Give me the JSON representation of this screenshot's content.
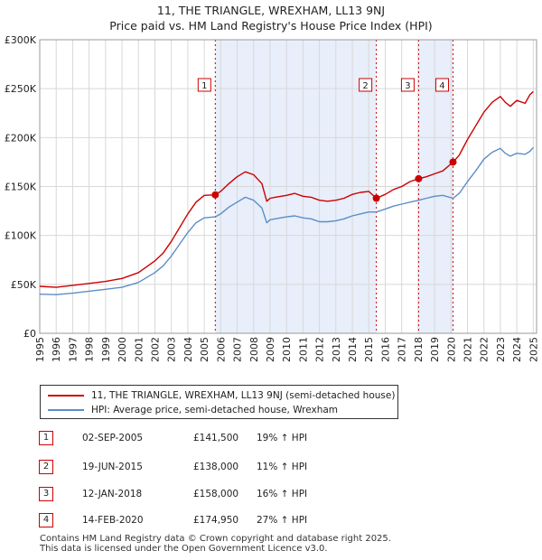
{
  "header": {
    "title": "11, THE TRIANGLE, WREXHAM, LL13 9NJ",
    "subtitle": "Price paid vs. HM Land Registry's House Price Index (HPI)"
  },
  "chart_data": {
    "type": "line",
    "title": "11, THE TRIANGLE, WREXHAM, LL13 9NJ",
    "subtitle": "Price paid vs. HM Land Registry's House Price Index (HPI)",
    "xlabel": "",
    "ylabel": "",
    "xlim": [
      1995,
      2025.2
    ],
    "ylim": [
      0,
      300000
    ],
    "yticks": [
      0,
      50000,
      100000,
      150000,
      200000,
      250000,
      300000
    ],
    "ytick_labels": [
      "£0",
      "£50K",
      "£100K",
      "£150K",
      "£200K",
      "£250K",
      "£300K"
    ],
    "xticks": [
      1995,
      1996,
      1997,
      1998,
      1999,
      2000,
      2001,
      2002,
      2003,
      2004,
      2005,
      2006,
      2007,
      2008,
      2009,
      2010,
      2011,
      2012,
      2013,
      2014,
      2015,
      2016,
      2017,
      2018,
      2019,
      2020,
      2021,
      2022,
      2023,
      2024,
      2025
    ],
    "grid": true,
    "shaded_periods": [
      [
        2005.67,
        2015.46
      ],
      [
        2018.03,
        2020.12
      ]
    ],
    "series": [
      {
        "name": "11, THE TRIANGLE, WREXHAM, LL13 9NJ (semi-detached house)",
        "color": "#cc0000",
        "x": [
          1995.0,
          1996.0,
          1997.0,
          1998.0,
          1999.0,
          2000.0,
          2001.0,
          2002.0,
          2002.5,
          2003.0,
          2003.5,
          2004.0,
          2004.5,
          2005.0,
          2005.67,
          2006.0,
          2006.5,
          2007.0,
          2007.5,
          2008.0,
          2008.5,
          2008.8,
          2009.0,
          2009.3,
          2010.0,
          2010.5,
          2011.0,
          2011.5,
          2012.0,
          2012.5,
          2013.0,
          2013.5,
          2014.0,
          2014.5,
          2015.0,
          2015.46,
          2016.0,
          2016.5,
          2017.0,
          2017.5,
          2018.03,
          2018.5,
          2019.0,
          2019.5,
          2020.12,
          2020.5,
          2021.0,
          2021.5,
          2022.0,
          2022.5,
          2023.0,
          2023.3,
          2023.6,
          2024.0,
          2024.5,
          2024.8,
          2025.0
        ],
        "values": [
          48000,
          47000,
          49000,
          51000,
          53000,
          56000,
          62000,
          74000,
          82000,
          94000,
          108000,
          122000,
          134000,
          141000,
          141500,
          145000,
          153000,
          160000,
          165000,
          162000,
          153000,
          135000,
          138000,
          139000,
          141000,
          143000,
          140000,
          139000,
          136000,
          135000,
          136000,
          138000,
          142000,
          144000,
          145000,
          138000,
          142000,
          147000,
          150000,
          155000,
          158000,
          160000,
          163000,
          166000,
          174950,
          182000,
          198000,
          212000,
          226000,
          236000,
          242000,
          236000,
          232000,
          238000,
          235000,
          244000,
          247000
        ]
      },
      {
        "name": "HPI: Average price, semi-detached house, Wrexham",
        "color": "#5b8ec5",
        "x": [
          1995.0,
          1996.0,
          1997.0,
          1998.0,
          1999.0,
          2000.0,
          2001.0,
          2002.0,
          2002.5,
          2003.0,
          2003.5,
          2004.0,
          2004.5,
          2005.0,
          2005.67,
          2006.0,
          2006.5,
          2007.0,
          2007.5,
          2008.0,
          2008.5,
          2008.8,
          2009.0,
          2009.3,
          2010.0,
          2010.5,
          2011.0,
          2011.5,
          2012.0,
          2012.5,
          2013.0,
          2013.5,
          2014.0,
          2014.5,
          2015.0,
          2015.46,
          2016.0,
          2016.5,
          2017.0,
          2017.5,
          2018.03,
          2018.5,
          2019.0,
          2019.5,
          2020.12,
          2020.5,
          2021.0,
          2021.5,
          2022.0,
          2022.5,
          2023.0,
          2023.3,
          2023.6,
          2024.0,
          2024.5,
          2024.8,
          2025.0
        ],
        "values": [
          40000,
          39500,
          41000,
          43000,
          45000,
          47000,
          52000,
          62000,
          69000,
          79000,
          91000,
          103000,
          113000,
          118000,
          119000,
          122000,
          129000,
          134000,
          139000,
          136000,
          128000,
          113000,
          116000,
          117000,
          119000,
          120000,
          118000,
          117000,
          114000,
          114000,
          115000,
          117000,
          120000,
          122000,
          124000,
          124000,
          127000,
          130000,
          132000,
          134000,
          136000,
          138000,
          140000,
          141000,
          138000,
          143000,
          155000,
          166000,
          178000,
          185000,
          189000,
          184000,
          181000,
          184000,
          183000,
          186000,
          190000
        ]
      }
    ],
    "sales": [
      {
        "label": "1",
        "x": 2005.67,
        "value": 141500
      },
      {
        "label": "2",
        "x": 2015.46,
        "value": 138000
      },
      {
        "label": "3",
        "x": 2018.03,
        "value": 158000
      },
      {
        "label": "4",
        "x": 2020.12,
        "value": 174950
      }
    ]
  },
  "legend": {
    "items": [
      {
        "label": "11, THE TRIANGLE, WREXHAM, LL13 9NJ (semi-detached house)",
        "color": "#cc0000"
      },
      {
        "label": "HPI: Average price, semi-detached house, Wrexham",
        "color": "#5b8ec5"
      }
    ]
  },
  "transactions": [
    {
      "num": "1",
      "date": "02-SEP-2005",
      "price": "£141,500",
      "hpi": "19% ↑ HPI"
    },
    {
      "num": "2",
      "date": "19-JUN-2015",
      "price": "£138,000",
      "hpi": "11% ↑ HPI"
    },
    {
      "num": "3",
      "date": "12-JAN-2018",
      "price": "£158,000",
      "hpi": "16% ↑ HPI"
    },
    {
      "num": "4",
      "date": "14-FEB-2020",
      "price": "£174,950",
      "hpi": "27% ↑ HPI"
    }
  ],
  "footer": {
    "line1": "Contains HM Land Registry data © Crown copyright and database right 2025.",
    "line2": "This data is licensed under the Open Government Licence v3.0."
  },
  "colors": {
    "price_line": "#cc0000",
    "hpi_line": "#5b8ec5",
    "shade": "#e8eefa",
    "grid": "#d8d8d8"
  }
}
